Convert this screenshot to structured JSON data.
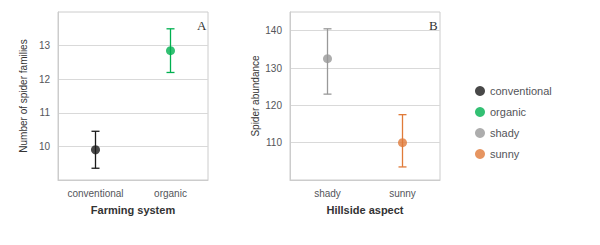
{
  "chart_data": [
    {
      "type": "scatter",
      "title": "A",
      "xlabel": "Farming system",
      "ylabel": "Number of spider families",
      "categories": [
        "conventional",
        "organic"
      ],
      "values": [
        9.9,
        12.85
      ],
      "ci_low": [
        9.35,
        12.2
      ],
      "ci_high": [
        10.45,
        13.5
      ],
      "colors": [
        "#1a1a1a",
        "#00b050"
      ],
      "ylim": [
        9.0,
        14.0
      ],
      "yticks": [
        10,
        11,
        12,
        13
      ],
      "grid": true,
      "legend": "right"
    },
    {
      "type": "scatter",
      "title": "B",
      "xlabel": "Hillside aspect",
      "ylabel": "Spider abundance",
      "categories": [
        "shady",
        "sunny"
      ],
      "values": [
        132.5,
        110.0
      ],
      "ci_low": [
        123.0,
        103.5
      ],
      "ci_high": [
        140.5,
        117.5
      ],
      "colors": [
        "#999999",
        "#e07b39"
      ],
      "ylim": [
        100,
        145
      ],
      "yticks": [
        110,
        120,
        130,
        140
      ],
      "grid": true,
      "legend": "right"
    }
  ]
}
